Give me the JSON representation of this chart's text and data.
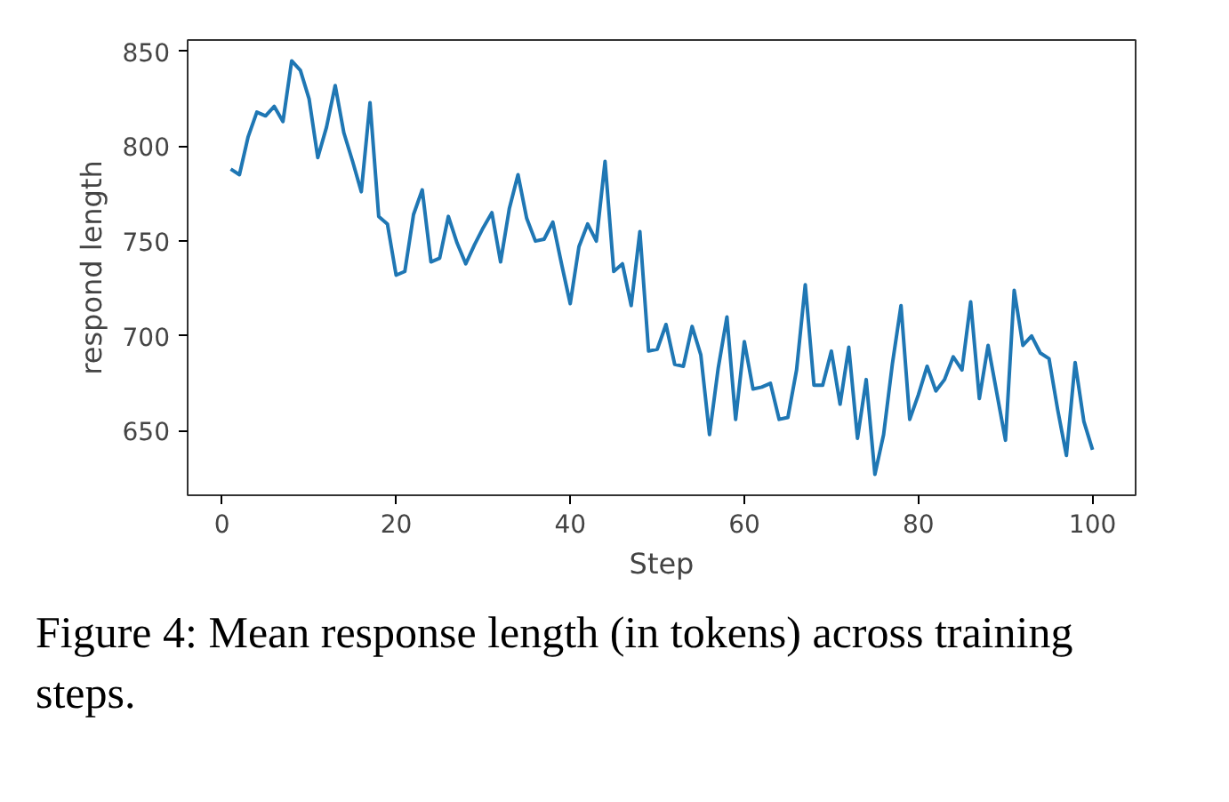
{
  "chart_data": {
    "type": "line",
    "xlabel": "Step",
    "ylabel": "respond length",
    "x": [
      1,
      2,
      3,
      4,
      5,
      6,
      7,
      8,
      9,
      10,
      11,
      12,
      13,
      14,
      15,
      16,
      17,
      18,
      19,
      20,
      21,
      22,
      23,
      24,
      25,
      26,
      27,
      28,
      29,
      30,
      31,
      32,
      33,
      34,
      35,
      36,
      37,
      38,
      39,
      40,
      41,
      42,
      43,
      44,
      45,
      46,
      47,
      48,
      49,
      50,
      51,
      52,
      53,
      54,
      55,
      56,
      57,
      58,
      59,
      60,
      61,
      62,
      63,
      64,
      65,
      66,
      67,
      68,
      69,
      70,
      71,
      72,
      73,
      74,
      75,
      76,
      77,
      78,
      79,
      80,
      81,
      82,
      83,
      84,
      85,
      86,
      87,
      88,
      89,
      90,
      91,
      92,
      93,
      94,
      95,
      96,
      97,
      98,
      99,
      100
    ],
    "series": [
      {
        "color": "#1f77b4",
        "values": [
          788,
          785,
          805,
          818,
          816,
          821,
          813,
          845,
          840,
          825,
          794,
          810,
          832,
          807,
          792,
          776,
          823,
          763,
          759,
          732,
          734,
          764,
          777,
          739,
          741,
          763,
          749,
          738,
          748,
          757,
          765,
          739,
          767,
          785,
          762,
          750,
          751,
          760,
          738,
          717,
          747,
          759,
          750,
          792,
          734,
          738,
          716,
          755,
          692,
          693,
          706,
          685,
          684,
          705,
          690,
          648,
          683,
          710,
          656,
          697,
          672,
          673,
          675,
          656,
          657,
          682,
          727,
          674,
          674,
          692,
          664,
          694,
          646,
          677,
          627,
          648,
          685,
          716,
          656,
          669,
          684,
          671,
          677,
          689,
          682,
          718,
          667,
          695,
          670,
          645,
          724,
          695,
          700,
          691,
          688,
          661,
          637,
          686,
          655,
          640
        ]
      }
    ],
    "xlim": [
      -3.95,
      104.95
    ],
    "ylim": [
      616,
      856
    ],
    "xticks": [
      0,
      20,
      40,
      60,
      80,
      100
    ],
    "yticks": [
      650,
      700,
      750,
      800,
      850
    ],
    "grid": false,
    "marker": "none",
    "line_style": "solid",
    "annotations": [
      "Figure 4: Mean response length (in tokens) across training steps."
    ]
  }
}
